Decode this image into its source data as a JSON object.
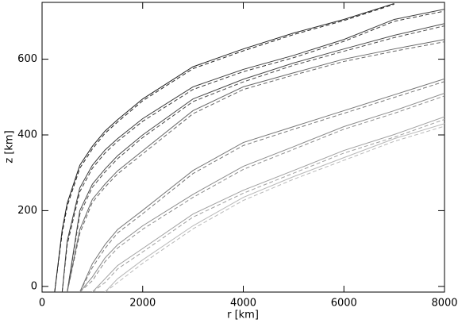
{
  "chart_data": {
    "type": "line",
    "x_label": "r [km]",
    "y_label": "z [km]",
    "x": [
      250,
      400,
      500,
      750,
      1000,
      1250,
      1500,
      2000,
      3000,
      4000,
      5000,
      6000,
      7000,
      8000
    ],
    "series": [
      {
        "color": "#222222",
        "dash": false,
        "values": [
          -15,
          150,
          220,
          320,
          370,
          410,
          440,
          495,
          580,
          627,
          669,
          705,
          747,
          null
        ]
      },
      {
        "color": "#222222",
        "dash": true,
        "values": [
          -15,
          140,
          212,
          312,
          363,
          404,
          434,
          490,
          575,
          622,
          665,
          702,
          745,
          null
        ]
      },
      {
        "color": "#3a3a3a",
        "dash": false,
        "values": [
          null,
          -15,
          120,
          260,
          320,
          360,
          390,
          443,
          527,
          573,
          610,
          652,
          705,
          732
        ]
      },
      {
        "color": "#3a3a3a",
        "dash": true,
        "values": [
          null,
          -15,
          110,
          250,
          312,
          352,
          383,
          436,
          520,
          567,
          604,
          647,
          700,
          727
        ]
      },
      {
        "color": "#4a4a4a",
        "dash": false,
        "values": [
          null,
          null,
          -15,
          200,
          270,
          310,
          345,
          400,
          495,
          547,
          590,
          627,
          663,
          694
        ]
      },
      {
        "color": "#4a4a4a",
        "dash": true,
        "values": [
          null,
          null,
          -15,
          190,
          262,
          302,
          337,
          393,
          488,
          540,
          584,
          621,
          657,
          688
        ]
      },
      {
        "color": "#666666",
        "dash": false,
        "values": [
          null,
          null,
          -15,
          150,
          230,
          270,
          305,
          358,
          464,
          527,
          564,
          600,
          627,
          652
        ]
      },
      {
        "color": "#666666",
        "dash": true,
        "values": [
          null,
          null,
          -15,
          140,
          222,
          262,
          297,
          350,
          456,
          520,
          558,
          594,
          621,
          646
        ]
      },
      {
        "color": "#777777",
        "dash": false,
        "values": [
          null,
          null,
          null,
          -15,
          60,
          110,
          150,
          201,
          306,
          380,
          422,
          464,
          506,
          548
        ]
      },
      {
        "color": "#777777",
        "dash": true,
        "values": [
          null,
          null,
          null,
          -15,
          50,
          100,
          141,
          192,
          298,
          372,
          415,
          457,
          499,
          541
        ]
      },
      {
        "color": "#8c8c8c",
        "dash": false,
        "values": [
          null,
          null,
          null,
          -15,
          25,
          75,
          110,
          160,
          243,
          317,
          369,
          422,
          464,
          510
        ]
      },
      {
        "color": "#8c8c8c",
        "dash": true,
        "values": [
          null,
          null,
          null,
          -15,
          15,
          65,
          101,
          151,
          235,
          309,
          362,
          415,
          457,
          503
        ]
      },
      {
        "color": "#a0a0a0",
        "dash": false,
        "values": [
          null,
          null,
          null,
          null,
          -15,
          20,
          55,
          100,
          191,
          254,
          306,
          359,
          401,
          448
        ]
      },
      {
        "color": "#a0a0a0",
        "dash": true,
        "values": [
          null,
          null,
          null,
          null,
          -15,
          10,
          46,
          91,
          183,
          246,
          299,
          352,
          394,
          441
        ]
      },
      {
        "color": "#b8b8b8",
        "dash": false,
        "values": [
          null,
          null,
          null,
          null,
          null,
          -15,
          20,
          70,
          160,
          235,
          290,
          340,
          390,
          430
        ]
      },
      {
        "color": "#b8b8b8",
        "dash": true,
        "values": [
          null,
          null,
          null,
          null,
          null,
          -15,
          10,
          61,
          152,
          227,
          283,
          333,
          383,
          423
        ]
      }
    ],
    "xlim": [
      0,
      8000
    ],
    "xticks": [
      0,
      2000,
      4000,
      6000,
      8000
    ],
    "ylim": [
      -15,
      750
    ],
    "yticks": [
      0,
      200,
      400,
      600
    ]
  }
}
